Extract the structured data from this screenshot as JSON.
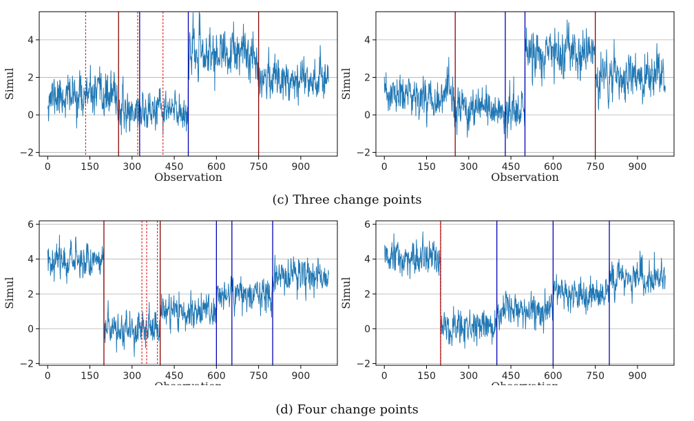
{
  "figure": {
    "captions": {
      "c": "(c) Three change points",
      "d": "(d) Four change points"
    }
  },
  "chart_data": [
    {
      "id": "c-left",
      "type": "line",
      "title": "",
      "xlabel": "Observation",
      "ylabel": "Simul",
      "xlim": [
        -30,
        1030
      ],
      "ylim": [
        -2.2,
        5.5
      ],
      "xticks": [
        0,
        150,
        300,
        450,
        600,
        750,
        900
      ],
      "yticks": [
        -2,
        0,
        2,
        4
      ],
      "grid": "horizontal",
      "series": [
        {
          "name": "Simul",
          "color": "#1f77b4",
          "n": 1000,
          "seed": 11,
          "segments": [
            {
              "from": 0,
              "to": 250,
              "mean": 1.0,
              "sd": 0.8
            },
            {
              "from": 250,
              "to": 500,
              "mean": 0.2,
              "sd": 0.75
            },
            {
              "from": 500,
              "to": 750,
              "mean": 3.2,
              "sd": 0.9
            },
            {
              "from": 750,
              "to": 1000,
              "mean": 2.0,
              "sd": 0.8
            }
          ]
        }
      ],
      "vlines": [
        {
          "x": 135,
          "color": "#e41a1c",
          "style": "dashed"
        },
        {
          "x": 252,
          "color": "#8b0000",
          "style": "solid"
        },
        {
          "x": 320,
          "color": "#e41a1c",
          "style": "dashed"
        },
        {
          "x": 327,
          "color": "#0000b3",
          "style": "solid"
        },
        {
          "x": 410,
          "color": "#e41a1c",
          "style": "dashed"
        },
        {
          "x": 500,
          "color": "#0000b3",
          "style": "solid"
        },
        {
          "x": 750,
          "color": "#8b0000",
          "style": "solid"
        }
      ]
    },
    {
      "id": "c-right",
      "type": "line",
      "title": "",
      "xlabel": "Observation",
      "ylabel": "Simul",
      "xlim": [
        -30,
        1030
      ],
      "ylim": [
        -2.2,
        5.5
      ],
      "xticks": [
        0,
        150,
        300,
        450,
        600,
        750,
        900
      ],
      "yticks": [
        -2,
        0,
        2,
        4
      ],
      "grid": "horizontal",
      "series": [
        {
          "name": "Simul",
          "color": "#1f77b4",
          "n": 1000,
          "seed": 23,
          "segments": [
            {
              "from": 0,
              "to": 250,
              "mean": 1.0,
              "sd": 0.8
            },
            {
              "from": 250,
              "to": 500,
              "mean": 0.2,
              "sd": 0.75
            },
            {
              "from": 500,
              "to": 750,
              "mean": 3.2,
              "sd": 0.9
            },
            {
              "from": 750,
              "to": 1000,
              "mean": 2.0,
              "sd": 0.8
            }
          ]
        }
      ],
      "vlines": [
        {
          "x": 252,
          "color": "#8b0000",
          "style": "solid"
        },
        {
          "x": 430,
          "color": "#0000b3",
          "style": "solid"
        },
        {
          "x": 500,
          "color": "#0000b3",
          "style": "solid"
        },
        {
          "x": 750,
          "color": "#8b0000",
          "style": "solid"
        }
      ]
    },
    {
      "id": "d-left",
      "type": "line",
      "title": "",
      "xlabel": "Observation",
      "ylabel": "Simul",
      "xlim": [
        -30,
        1030
      ],
      "ylim": [
        -2.1,
        6.2
      ],
      "xticks": [
        0,
        150,
        300,
        450,
        600,
        750,
        900
      ],
      "yticks": [
        -2,
        0,
        2,
        4,
        6
      ],
      "grid": "horizontal",
      "series": [
        {
          "name": "Simul",
          "color": "#1f77b4",
          "n": 1000,
          "seed": 37,
          "segments": [
            {
              "from": 0,
              "to": 200,
              "mean": 4.0,
              "sd": 0.7
            },
            {
              "from": 200,
              "to": 400,
              "mean": 0.0,
              "sd": 0.7
            },
            {
              "from": 400,
              "to": 600,
              "mean": 1.0,
              "sd": 0.7
            },
            {
              "from": 600,
              "to": 800,
              "mean": 2.0,
              "sd": 0.7
            },
            {
              "from": 800,
              "to": 1000,
              "mean": 3.0,
              "sd": 0.7
            }
          ]
        }
      ],
      "vlines": [
        {
          "x": 200,
          "color": "#8b0000",
          "style": "solid"
        },
        {
          "x": 335,
          "color": "#e41a1c",
          "style": "dashed"
        },
        {
          "x": 352,
          "color": "#e41a1c",
          "style": "dashed"
        },
        {
          "x": 390,
          "color": "#e41a1c",
          "style": "dashed"
        },
        {
          "x": 400,
          "color": "#8b0000",
          "style": "solid"
        },
        {
          "x": 600,
          "color": "#0000b3",
          "style": "solid"
        },
        {
          "x": 655,
          "color": "#0000b3",
          "style": "solid"
        },
        {
          "x": 800,
          "color": "#0000b3",
          "style": "solid"
        }
      ]
    },
    {
      "id": "d-right",
      "type": "line",
      "title": "",
      "xlabel": "Observation",
      "ylabel": "Simul",
      "xlim": [
        -30,
        1030
      ],
      "ylim": [
        -2.1,
        6.2
      ],
      "xticks": [
        0,
        150,
        300,
        450,
        600,
        750,
        900
      ],
      "yticks": [
        -2,
        0,
        2,
        4,
        6
      ],
      "grid": "horizontal",
      "series": [
        {
          "name": "Simul",
          "color": "#1f77b4",
          "n": 1000,
          "seed": 51,
          "segments": [
            {
              "from": 0,
              "to": 200,
              "mean": 4.0,
              "sd": 0.7
            },
            {
              "from": 200,
              "to": 400,
              "mean": 0.0,
              "sd": 0.7
            },
            {
              "from": 400,
              "to": 600,
              "mean": 1.0,
              "sd": 0.7
            },
            {
              "from": 600,
              "to": 800,
              "mean": 2.0,
              "sd": 0.7
            },
            {
              "from": 800,
              "to": 1000,
              "mean": 3.0,
              "sd": 0.7
            }
          ]
        }
      ],
      "vlines": [
        {
          "x": 200,
          "color": "#8b0000",
          "style": "solid"
        },
        {
          "x": 200,
          "color": "#e41a1c",
          "style": "dashed"
        },
        {
          "x": 400,
          "color": "#0000b3",
          "style": "solid"
        },
        {
          "x": 600,
          "color": "#0000b3",
          "style": "solid"
        },
        {
          "x": 800,
          "color": "#0000b3",
          "style": "solid"
        }
      ]
    }
  ]
}
